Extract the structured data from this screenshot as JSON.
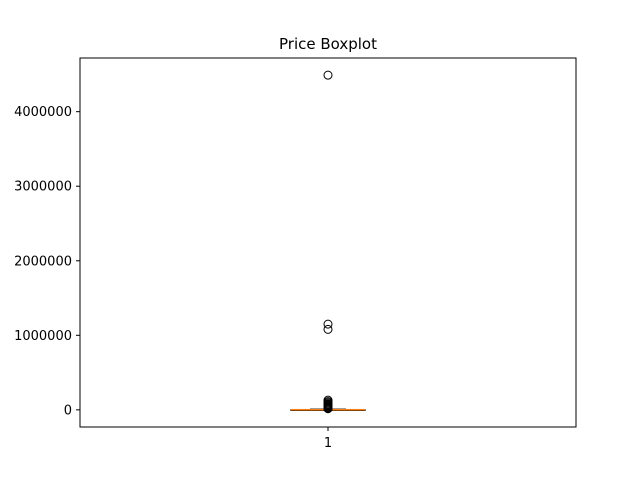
{
  "chart_data": {
    "type": "boxplot",
    "title": "Price Boxplot",
    "xlabel": "",
    "ylabel": "",
    "categories": [
      "1"
    ],
    "ylim": [
      -230000,
      4720000
    ],
    "yticks": [
      0,
      1000000,
      2000000,
      3000000,
      4000000
    ],
    "ytick_labels": [
      "0",
      "1000000",
      "2000000",
      "3000000",
      "4000000"
    ],
    "box": {
      "q1": 0,
      "median": 1000,
      "q3": 5000,
      "whisker_low": 0,
      "whisker_high": 10000
    },
    "outliers": [
      4490000,
      1150000,
      1080000,
      130000,
      110000,
      95000,
      80000,
      70000,
      60000,
      50000,
      40000,
      30000,
      25000,
      20000,
      15000
    ],
    "box_color": "#000000",
    "median_color": "#ff7f0e",
    "grid": false
  }
}
